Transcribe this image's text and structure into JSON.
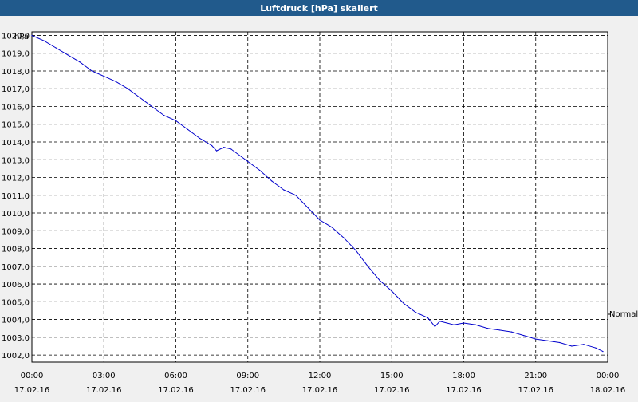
{
  "window": {
    "title": "Luftdruck [hPa] skaliert"
  },
  "chart_data": {
    "type": "line",
    "title": "Luftdruck [hPa] skaliert",
    "ylabel": "hPa",
    "ylim": [
      1001.6,
      1020.2
    ],
    "y_ticks": [
      "1002,0",
      "1003,0",
      "1004,0",
      "1005,0",
      "1006,0",
      "1007,0",
      "1008,0",
      "1009,0",
      "1010,0",
      "1011,0",
      "1012,0",
      "1013,0",
      "1014,0",
      "1015,0",
      "1016,0",
      "1017,0",
      "1018,0",
      "1019,0",
      "1020,0"
    ],
    "x_range_hours": [
      0,
      24
    ],
    "x_ticks": [
      {
        "time": "00:00",
        "date": "17.02.16"
      },
      {
        "time": "03:00",
        "date": "17.02.16"
      },
      {
        "time": "06:00",
        "date": "17.02.16"
      },
      {
        "time": "09:00",
        "date": "17.02.16"
      },
      {
        "time": "12:00",
        "date": "17.02.16"
      },
      {
        "time": "15:00",
        "date": "17.02.16"
      },
      {
        "time": "18:00",
        "date": "17.02.16"
      },
      {
        "time": "21:00",
        "date": "17.02.16"
      },
      {
        "time": "00:00",
        "date": "18.02.16"
      }
    ],
    "grid": true,
    "reference_label": "Normal",
    "series": [
      {
        "color": "#0000cc",
        "x": [
          0,
          0.5,
          1,
          1.5,
          2,
          2.5,
          3,
          3.5,
          4,
          4.5,
          5,
          5.5,
          6,
          6.5,
          7,
          7.5,
          7.7,
          8,
          8.3,
          9,
          9.5,
          10,
          10.5,
          11,
          11.5,
          12,
          12.5,
          13,
          13.5,
          14,
          14.5,
          15,
          15.5,
          16,
          16.5,
          16.8,
          17,
          17.3,
          17.6,
          18,
          18.5,
          19,
          19.5,
          20,
          20.5,
          21,
          21.5,
          22,
          22.5,
          23,
          23.5,
          23.8
        ],
        "y": [
          1020.0,
          1019.7,
          1019.3,
          1018.9,
          1018.5,
          1018.0,
          1017.7,
          1017.4,
          1017.0,
          1016.5,
          1016.0,
          1015.5,
          1015.2,
          1014.7,
          1014.2,
          1013.8,
          1013.5,
          1013.7,
          1013.6,
          1012.9,
          1012.4,
          1011.8,
          1011.3,
          1011.0,
          1010.3,
          1009.6,
          1009.2,
          1008.6,
          1007.9,
          1007.0,
          1006.2,
          1005.6,
          1004.9,
          1004.4,
          1004.1,
          1003.6,
          1003.9,
          1003.8,
          1003.7,
          1003.8,
          1003.7,
          1003.5,
          1003.4,
          1003.3,
          1003.1,
          1002.9,
          1002.8,
          1002.7,
          1002.5,
          1002.6,
          1002.4,
          1002.2
        ]
      }
    ]
  }
}
